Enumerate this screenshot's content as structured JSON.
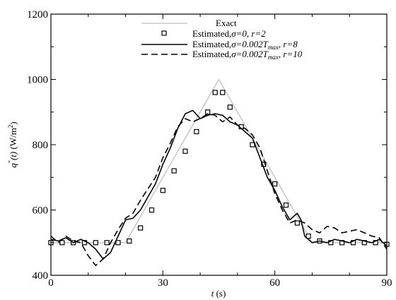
{
  "chart_data": {
    "type": "line",
    "title": "",
    "xlabel": "t (s)",
    "ylabel": "q\"(t) (W/m²)",
    "xlim": [
      0,
      90
    ],
    "ylim": [
      400,
      1200
    ],
    "xticks": [
      0,
      30,
      60,
      90
    ],
    "yticks": [
      400,
      600,
      800,
      1000,
      1200
    ],
    "grid": false,
    "legend_position": "top-right",
    "series": [
      {
        "name": "Exact",
        "style": "solid",
        "color": "#c8c8c8",
        "x": [
          0,
          20,
          45,
          70,
          90
        ],
        "y": [
          500,
          500,
          1000,
          500,
          500
        ]
      },
      {
        "name": "Estimated,σ=0, r=2",
        "style": "markers",
        "marker": "square",
        "color": "#000000",
        "x": [
          0,
          3,
          6,
          9,
          12,
          15,
          18,
          21,
          24,
          27,
          30,
          33,
          36,
          39,
          42,
          44,
          46,
          48,
          51,
          54,
          57,
          60,
          63,
          66,
          69,
          72,
          75,
          78,
          81,
          84,
          87,
          90
        ],
        "y": [
          500,
          500,
          500,
          500,
          500,
          500,
          500,
          505,
          545,
          600,
          660,
          720,
          780,
          840,
          900,
          960,
          960,
          915,
          855,
          800,
          740,
          680,
          615,
          560,
          520,
          505,
          500,
          500,
          500,
          500,
          500,
          495
        ]
      },
      {
        "name": "Estimated,σ=0.002T_max, r=8",
        "style": "solid",
        "color": "#000000",
        "x": [
          0,
          2,
          4,
          6,
          8,
          10,
          12,
          14,
          16,
          18,
          20,
          22,
          24,
          26,
          28,
          30,
          32,
          34,
          36,
          37,
          38,
          40,
          42,
          44,
          46,
          48,
          50,
          52,
          54,
          56,
          58,
          60,
          62,
          64,
          65,
          66,
          67,
          68,
          70,
          72,
          74,
          76,
          78,
          80,
          82,
          84,
          86,
          88,
          90
        ],
        "y": [
          510,
          505,
          515,
          500,
          510,
          500,
          480,
          450,
          470,
          520,
          570,
          575,
          600,
          640,
          680,
          740,
          790,
          850,
          895,
          900,
          905,
          880,
          890,
          895,
          890,
          870,
          860,
          840,
          820,
          760,
          700,
          660,
          610,
          570,
          580,
          590,
          570,
          520,
          500,
          505,
          500,
          510,
          505,
          500,
          510,
          505,
          500,
          510,
          490
        ]
      },
      {
        "name": "Estimated,σ=0.002T_max, r=10",
        "style": "dashed",
        "color": "#000000",
        "x": [
          0,
          2,
          4,
          6,
          8,
          10,
          12,
          14,
          16,
          18,
          20,
          22,
          24,
          26,
          28,
          30,
          32,
          34,
          36,
          38,
          40,
          42,
          44,
          46,
          48,
          50,
          52,
          54,
          56,
          58,
          60,
          62,
          64,
          66,
          68,
          70,
          72,
          74,
          76,
          78,
          80,
          82,
          84,
          86,
          88,
          90
        ],
        "y": [
          520,
          500,
          520,
          505,
          500,
          460,
          430,
          450,
          500,
          540,
          575,
          590,
          630,
          665,
          700,
          760,
          805,
          855,
          880,
          870,
          880,
          895,
          890,
          870,
          885,
          860,
          850,
          830,
          790,
          720,
          650,
          600,
          560,
          570,
          560,
          540,
          530,
          550,
          545,
          530,
          535,
          540,
          530,
          520,
          515,
          480
        ]
      }
    ]
  },
  "axes": {
    "x_title_main": "t",
    "x_title_unit": " (s)",
    "y_title_main": "q",
    "y_title_prime": "\"",
    "y_title_arg": "(t)",
    "y_title_unit": " (W/m",
    "y_title_sup": "2",
    "y_title_close": ")"
  },
  "legend": {
    "exact": "Exact",
    "r2_prefix": "Estimated,",
    "r2_math": "σ=0, r=2",
    "r8_prefix": "Estimated,",
    "r8_math": "σ=0.002T",
    "r8_sub": "max",
    "r8_tail": ", r=8",
    "r10_prefix": "Estimated,",
    "r10_math": "σ=0.002T",
    "r10_sub": "max",
    "r10_tail": ", r=10"
  }
}
